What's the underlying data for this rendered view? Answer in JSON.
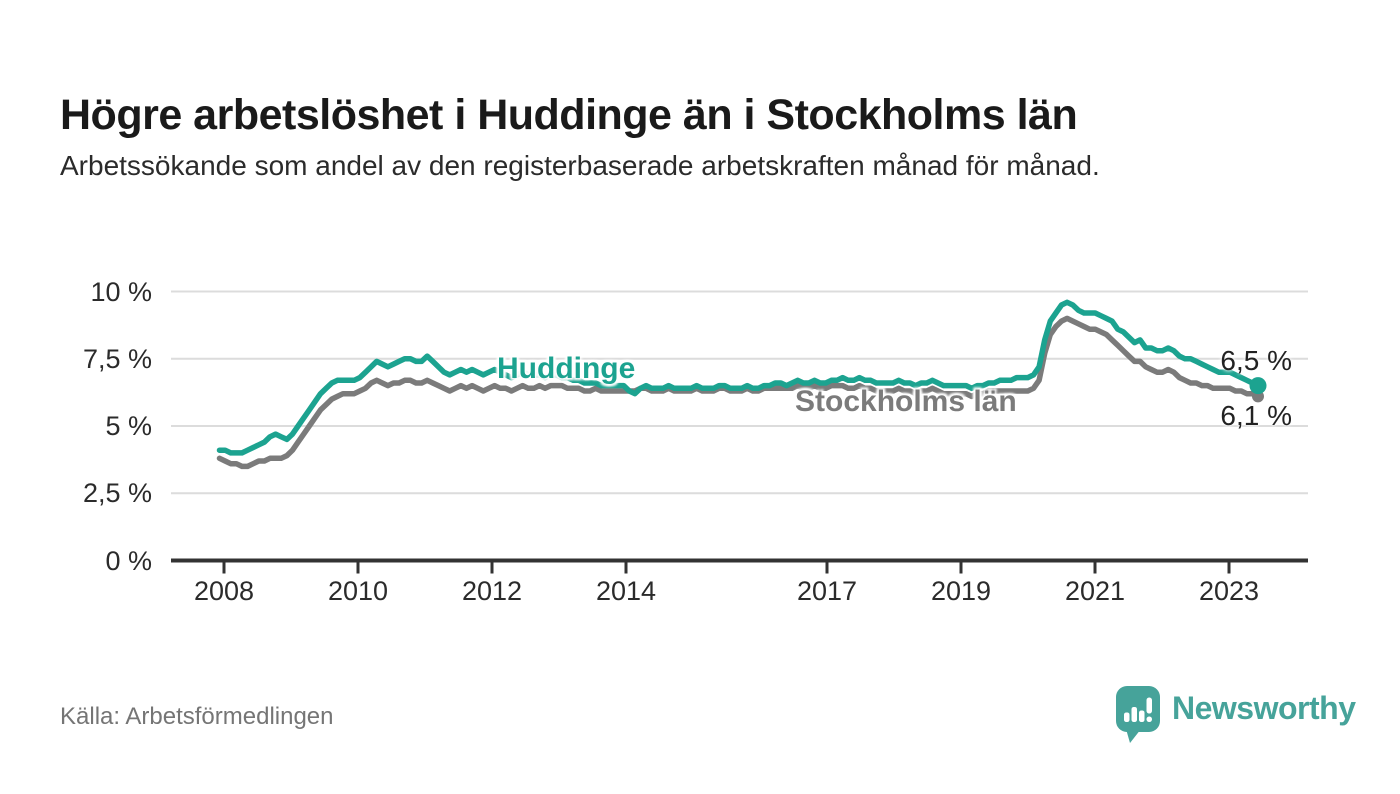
{
  "title": "Högre arbetslöshet i Huddinge än i Stockholms län",
  "subtitle": "Arbetssökande som andel av den registerbaserade arbetskraften månad för månad.",
  "source": "Källa: Arbetsförmedlingen",
  "branding": {
    "logo_text": "Newsworthy",
    "logo_icon": "newsworthy-speech-bubble-bar-chart-icon",
    "brand_color": "#46A39A"
  },
  "colors": {
    "huddinge_line": "#1CA390",
    "stockholm_line": "#7B7B7B",
    "gridline": "#DCDCDC",
    "axis": "#333333",
    "tick_text": "#2b2b2b",
    "title_text": "#1a1a1a",
    "source_text": "#757575"
  },
  "chart_data": {
    "type": "line",
    "title": "Högre arbetslöshet i Huddinge än i Stockholms län",
    "subtitle": "Arbetssökande som andel av den registerbaserade arbetskraften månad för månad.",
    "unit": "%",
    "frequency": "monthly",
    "x_start": "2008-01",
    "x_end": "2023-06",
    "ylim": [
      0,
      10.4
    ],
    "grid": "horizontal",
    "legend_position": "inline-on-lines",
    "y_tick_values": [
      0,
      2.5,
      5,
      7.5,
      10
    ],
    "y_tick_labels": [
      "0 %",
      "2,5 %",
      "5 %",
      "7,5 %",
      "10 %"
    ],
    "x_tick_years": [
      2008,
      2010,
      2012,
      2014,
      2017,
      2019,
      2021,
      2023
    ],
    "x_tick_labels": [
      "2008",
      "2010",
      "2012",
      "2014",
      "2017",
      "2019",
      "2021",
      "2023"
    ],
    "series": [
      {
        "name": "Stockholms län",
        "color": "#7B7B7B",
        "end_label": "6,1 %",
        "end_value": 6.1,
        "values": [
          3.8,
          3.7,
          3.6,
          3.6,
          3.5,
          3.5,
          3.6,
          3.7,
          3.7,
          3.8,
          3.8,
          3.8,
          3.9,
          4.1,
          4.4,
          4.7,
          5.0,
          5.3,
          5.6,
          5.8,
          6.0,
          6.1,
          6.2,
          6.2,
          6.2,
          6.3,
          6.4,
          6.6,
          6.7,
          6.6,
          6.5,
          6.6,
          6.6,
          6.7,
          6.7,
          6.6,
          6.6,
          6.7,
          6.6,
          6.5,
          6.4,
          6.3,
          6.4,
          6.5,
          6.4,
          6.5,
          6.4,
          6.3,
          6.4,
          6.5,
          6.4,
          6.4,
          6.3,
          6.4,
          6.5,
          6.4,
          6.4,
          6.5,
          6.4,
          6.5,
          6.5,
          6.5,
          6.4,
          6.4,
          6.4,
          6.3,
          6.3,
          6.4,
          6.3,
          6.3,
          6.3,
          6.3,
          6.3,
          6.3,
          6.3,
          6.4,
          6.4,
          6.3,
          6.3,
          6.3,
          6.4,
          6.3,
          6.3,
          6.3,
          6.3,
          6.4,
          6.3,
          6.3,
          6.3,
          6.4,
          6.4,
          6.3,
          6.3,
          6.3,
          6.4,
          6.3,
          6.3,
          6.4,
          6.4,
          6.4,
          6.4,
          6.4,
          6.4,
          6.5,
          6.4,
          6.4,
          6.5,
          6.4,
          6.4,
          6.5,
          6.5,
          6.5,
          6.4,
          6.4,
          6.5,
          6.4,
          6.4,
          6.3,
          6.3,
          6.3,
          6.3,
          6.4,
          6.3,
          6.3,
          6.2,
          6.3,
          6.3,
          6.4,
          6.3,
          6.2,
          6.2,
          6.2,
          6.2,
          6.2,
          6.1,
          6.2,
          6.2,
          6.3,
          6.3,
          6.3,
          6.3,
          6.3,
          6.3,
          6.3,
          6.3,
          6.4,
          6.7,
          7.7,
          8.4,
          8.7,
          8.9,
          9.0,
          8.9,
          8.8,
          8.7,
          8.6,
          8.6,
          8.5,
          8.4,
          8.2,
          8.0,
          7.8,
          7.6,
          7.4,
          7.4,
          7.2,
          7.1,
          7.0,
          7.0,
          7.1,
          7.0,
          6.8,
          6.7,
          6.6,
          6.6,
          6.5,
          6.5,
          6.4,
          6.4,
          6.4,
          6.4,
          6.3,
          6.3,
          6.2,
          6.2,
          6.1
        ]
      },
      {
        "name": "Huddinge",
        "color": "#1CA390",
        "end_label": "6,5 %",
        "end_value": 6.5,
        "values": [
          4.1,
          4.1,
          4.0,
          4.0,
          4.0,
          4.1,
          4.2,
          4.3,
          4.4,
          4.6,
          4.7,
          4.6,
          4.5,
          4.7,
          5.0,
          5.3,
          5.6,
          5.9,
          6.2,
          6.4,
          6.6,
          6.7,
          6.7,
          6.7,
          6.7,
          6.8,
          7.0,
          7.2,
          7.4,
          7.3,
          7.2,
          7.3,
          7.4,
          7.5,
          7.5,
          7.4,
          7.4,
          7.6,
          7.4,
          7.2,
          7.0,
          6.9,
          7.0,
          7.1,
          7.0,
          7.1,
          7.0,
          6.9,
          7.0,
          7.1,
          7.0,
          6.9,
          6.8,
          6.9,
          7.0,
          6.9,
          6.9,
          6.9,
          6.8,
          6.9,
          6.9,
          6.8,
          6.8,
          6.7,
          6.7,
          6.6,
          6.6,
          6.6,
          6.5,
          6.5,
          6.5,
          6.5,
          6.5,
          6.3,
          6.2,
          6.4,
          6.5,
          6.4,
          6.4,
          6.4,
          6.5,
          6.4,
          6.4,
          6.4,
          6.4,
          6.5,
          6.4,
          6.4,
          6.4,
          6.5,
          6.5,
          6.4,
          6.4,
          6.4,
          6.5,
          6.4,
          6.4,
          6.5,
          6.5,
          6.6,
          6.6,
          6.5,
          6.6,
          6.7,
          6.6,
          6.6,
          6.7,
          6.6,
          6.6,
          6.7,
          6.7,
          6.8,
          6.7,
          6.7,
          6.8,
          6.7,
          6.7,
          6.6,
          6.6,
          6.6,
          6.6,
          6.7,
          6.6,
          6.6,
          6.5,
          6.6,
          6.6,
          6.7,
          6.6,
          6.5,
          6.5,
          6.5,
          6.5,
          6.5,
          6.4,
          6.5,
          6.5,
          6.6,
          6.6,
          6.7,
          6.7,
          6.7,
          6.8,
          6.8,
          6.8,
          6.9,
          7.2,
          8.2,
          8.9,
          9.2,
          9.5,
          9.6,
          9.5,
          9.3,
          9.2,
          9.2,
          9.2,
          9.1,
          9.0,
          8.9,
          8.6,
          8.5,
          8.3,
          8.1,
          8.2,
          7.9,
          7.9,
          7.8,
          7.8,
          7.9,
          7.8,
          7.6,
          7.5,
          7.5,
          7.4,
          7.3,
          7.2,
          7.1,
          7.0,
          7.0,
          7.0,
          6.9,
          6.8,
          6.7,
          6.6,
          6.5
        ]
      }
    ]
  }
}
